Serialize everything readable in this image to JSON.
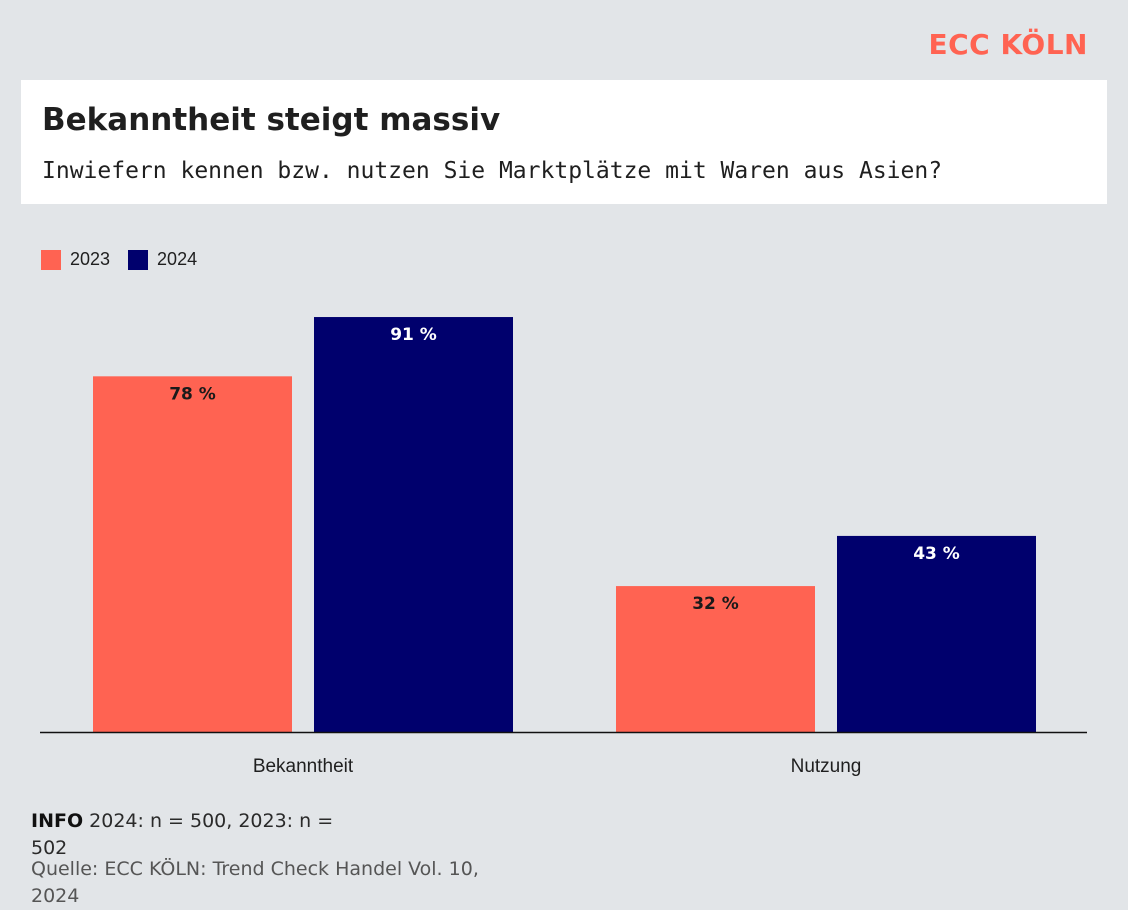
{
  "brand": {
    "logo_text": "ECC KÖLN",
    "accent": "#ff6352",
    "navy": "#00006d"
  },
  "header": {
    "title": "Bekanntheit steigt massiv",
    "subtitle": "Inwiefern kennen bzw. nutzen Sie Marktplätze mit Waren aus Asien?"
  },
  "footer": {
    "info_label": "INFO",
    "info_text": " 2024: n = 500, 2023: n = 502",
    "source_text": "Quelle: ECC KÖLN: Trend Check Handel Vol. 10, 2024"
  },
  "chart_data": {
    "type": "bar",
    "categories": [
      "Bekanntheit",
      "Nutzung"
    ],
    "series": [
      {
        "name": "2023",
        "values": [
          78,
          32
        ],
        "color": "#ff6352",
        "label_color": "#1a1a1a"
      },
      {
        "name": "2024",
        "values": [
          91,
          43
        ],
        "color": "#00006d",
        "label_color": "#ffffff"
      }
    ],
    "value_suffix": " %",
    "ylim": [
      0,
      100
    ],
    "grid": false,
    "legend_position": "top-left",
    "title": "Bekanntheit steigt massiv",
    "xlabel": "",
    "ylabel": ""
  }
}
